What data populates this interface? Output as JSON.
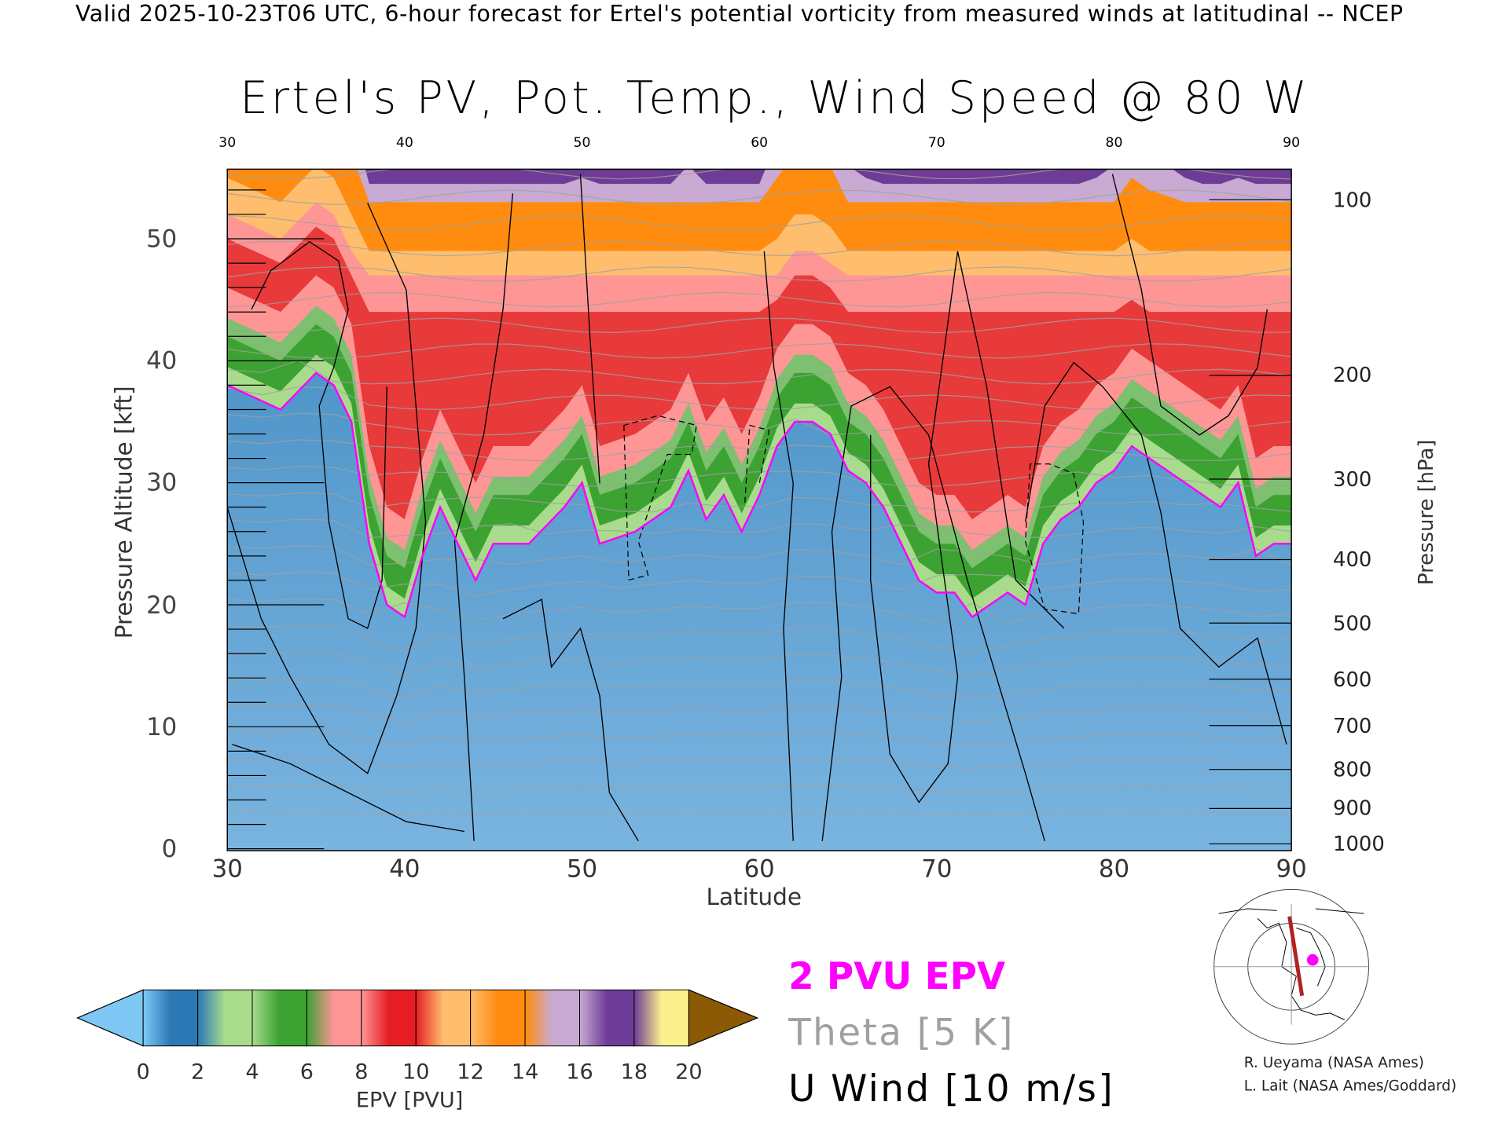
{
  "header": {
    "subtitle": "Valid 2025-10-23T06 UTC, 6-hour forecast for Ertel's potential vorticity from measured winds at latitudinal -- NCEP"
  },
  "chart_data": {
    "type": "heatmap",
    "title": "Ertel's PV, Pot. Temp., Wind Speed @ 80 W",
    "xlabel": "Latitude",
    "ylabel": "Pressure Altitude [kft]",
    "y2label": "Pressure [hPa]",
    "xlim": [
      30,
      90
    ],
    "ylim": [
      0,
      55.7
    ],
    "x_ticks": [
      "30",
      "40",
      "50",
      "60",
      "70",
      "80",
      "90"
    ],
    "x_tick_values": [
      30,
      40,
      50,
      60,
      70,
      80,
      90
    ],
    "y_ticks": [
      "0",
      "10",
      "20",
      "30",
      "40",
      "50"
    ],
    "y_tick_values": [
      0,
      10,
      20,
      30,
      40,
      50
    ],
    "pressure_ticks": [
      {
        "label": "100",
        "kft": 53.2
      },
      {
        "label": "200",
        "kft": 38.8
      },
      {
        "label": "300",
        "kft": 30.3
      },
      {
        "label": "400",
        "kft": 23.7
      },
      {
        "label": "500",
        "kft": 18.5
      },
      {
        "label": "600",
        "kft": 13.9
      },
      {
        "label": "700",
        "kft": 10.1
      },
      {
        "label": "800",
        "kft": 6.5
      },
      {
        "label": "900",
        "kft": 3.3
      },
      {
        "label": "1000",
        "kft": 0.4
      }
    ],
    "two_pvu_line": {
      "lat": [
        30,
        33,
        35,
        36,
        37,
        38,
        39,
        40,
        41,
        42,
        43,
        44,
        45,
        47,
        49,
        50,
        51,
        53,
        55,
        56,
        57,
        58,
        59,
        60,
        61,
        62,
        63,
        64,
        65,
        66,
        67,
        68,
        69,
        70,
        71,
        72,
        73,
        74,
        75,
        76,
        77,
        78,
        79,
        80,
        81,
        82,
        84,
        85,
        86,
        87,
        88,
        89,
        90
      ],
      "kft": [
        38,
        36,
        39,
        38,
        35,
        25,
        20,
        19,
        24,
        28,
        25,
        22,
        25,
        25,
        28,
        30,
        25,
        26,
        28,
        31,
        27,
        29,
        26,
        29,
        33,
        35,
        35,
        34,
        31,
        30,
        28,
        25,
        22,
        21,
        21,
        19,
        20,
        21,
        20,
        25,
        27,
        28,
        30,
        31,
        33,
        32,
        30,
        29,
        28,
        30,
        24,
        25,
        25
      ]
    },
    "colorbar": {
      "label": "EPV [PVU]",
      "ticks": [
        "0",
        "2",
        "4",
        "6",
        "8",
        "10",
        "12",
        "14",
        "16",
        "18",
        "20"
      ],
      "colors": [
        "#7fc8f5",
        "#2c78b4",
        "#a8dc8c",
        "#3ca232",
        "#ff9696",
        "#e61e23",
        "#ffbe6e",
        "#ff8c0f",
        "#c8aad2",
        "#6e3c96",
        "#faf08c",
        "#8c5a05"
      ]
    },
    "legend": [
      {
        "label": "2 PVU EPV",
        "color": "#ff00ff"
      },
      {
        "label": "Theta [5 K]",
        "color": "#a0a0a0"
      },
      {
        "label": "U Wind [10 m/s]",
        "color": "#000000"
      }
    ]
  },
  "credits": [
    "R. Ueyama (NASA Ames)",
    "L. Lait (NASA Ames/Goddard)"
  ]
}
